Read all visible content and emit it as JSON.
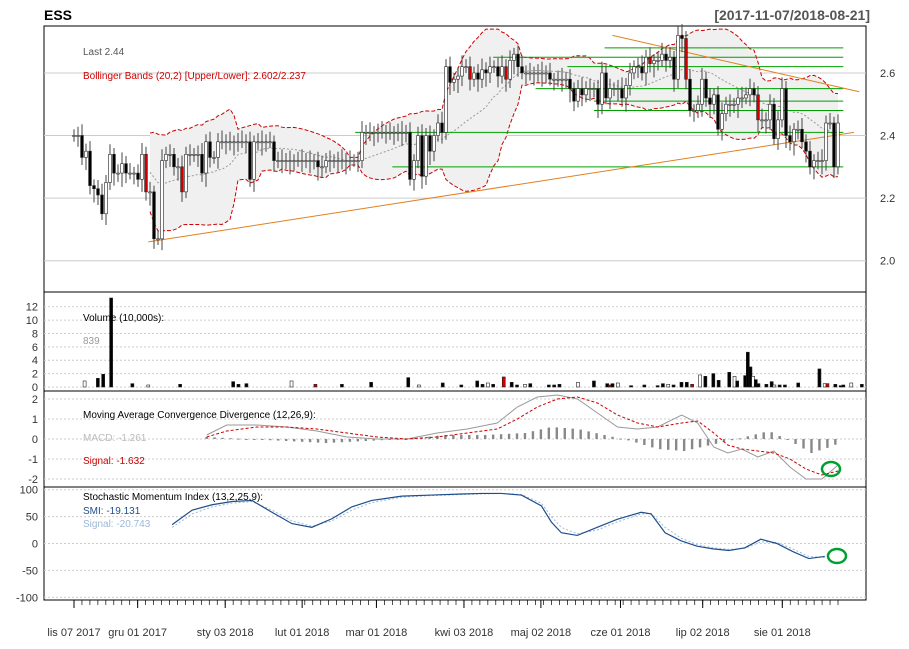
{
  "header": {
    "symbol": "ESS",
    "date_range": "[2017-11-07/2018-08-21]"
  },
  "chart_data": [
    {
      "type": "candlestick",
      "panel": "price",
      "ylim": [
        1.9,
        2.75
      ],
      "yticks": [
        "2.0",
        "2.2",
        "2.4",
        "2.6"
      ],
      "labels": {
        "last": "Last 2.44",
        "bbands": "Bollinger Bands (20,2) [Upper/Lower]: 2.602/2.237"
      },
      "colors": {
        "up": "#ffffff",
        "down": "#000000",
        "down_red": "#cc0000",
        "bb_line": "#cc0000",
        "bb_fill": "#f0f0f0",
        "trend": "#e08020",
        "level": "#00a000",
        "ma": "#999999"
      },
      "close": [
        2.4,
        2.4,
        2.33,
        2.35,
        2.24,
        2.23,
        2.21,
        2.15,
        2.25,
        2.34,
        2.28,
        2.28,
        2.31,
        2.28,
        2.28,
        2.28,
        2.26,
        2.34,
        2.22,
        2.22,
        2.07,
        2.07,
        2.32,
        2.34,
        2.34,
        2.3,
        2.3,
        2.22,
        2.34,
        2.34,
        2.34,
        2.34,
        2.28,
        2.38,
        2.33,
        2.33,
        2.38,
        2.38,
        2.38,
        2.38,
        2.38,
        2.38,
        2.38,
        2.38,
        2.26,
        2.38,
        2.38,
        2.38,
        2.38,
        2.38,
        2.32,
        2.32,
        2.32,
        2.32,
        2.32,
        2.32,
        2.32,
        2.32,
        2.32,
        2.32,
        2.32,
        2.3,
        2.3,
        2.32,
        2.32,
        2.32,
        2.32,
        2.32,
        2.32,
        2.32,
        2.32,
        2.32,
        2.41,
        2.41,
        2.41,
        2.41,
        2.41,
        2.41,
        2.41,
        2.41,
        2.41,
        2.41,
        2.41,
        2.41,
        2.26,
        2.32,
        2.4,
        2.27,
        2.4,
        2.35,
        2.4,
        2.44,
        2.41,
        2.62,
        2.57,
        2.58,
        2.59,
        2.62,
        2.62,
        2.58,
        2.6,
        2.58,
        2.61,
        2.6,
        2.62,
        2.62,
        2.59,
        2.62,
        2.58,
        2.64,
        2.66,
        2.62,
        2.6,
        2.6,
        2.6,
        2.6,
        2.6,
        2.6,
        2.6,
        2.58,
        2.58,
        2.58,
        2.58,
        2.58,
        2.55,
        2.51,
        2.55,
        2.53,
        2.55,
        2.55,
        2.55,
        2.5,
        2.6,
        2.52,
        2.55,
        2.55,
        2.55,
        2.52,
        2.56,
        2.6,
        2.62,
        2.62,
        2.6,
        2.65,
        2.63,
        2.64,
        2.64,
        2.66,
        2.64,
        2.65,
        2.58,
        2.72,
        2.71,
        2.58,
        2.48,
        2.48,
        2.5,
        2.58,
        2.52,
        2.5,
        2.53,
        2.42,
        2.47,
        2.5,
        2.5,
        2.5,
        2.52,
        2.52,
        2.53,
        2.55,
        2.53,
        2.45,
        2.45,
        2.45,
        2.5,
        2.39,
        2.45,
        2.55,
        2.4,
        2.38,
        2.42,
        2.42,
        2.38,
        2.35,
        2.3,
        2.32,
        2.32,
        2.32,
        2.44,
        2.44,
        2.3,
        2.44
      ]
    },
    {
      "type": "bar",
      "panel": "volume",
      "title": "Volume (10,000s):",
      "last_label": "839",
      "ylim": [
        0,
        13
      ],
      "yticks": [
        "0",
        "2",
        "4",
        "6",
        "8",
        "10",
        "12"
      ],
      "spikes": [
        [
          4,
          0.9
        ],
        [
          9,
          1.3
        ],
        [
          11,
          1.9
        ],
        [
          14,
          13.3
        ],
        [
          22,
          0.5
        ],
        [
          28,
          0.3
        ],
        [
          40,
          0.4
        ],
        [
          60,
          0.8
        ],
        [
          62,
          0.4
        ],
        [
          65,
          0.5
        ],
        [
          82,
          0.9
        ],
        [
          91,
          0.4
        ],
        [
          101,
          0.4
        ],
        [
          112,
          0.7
        ],
        [
          126,
          1.4
        ],
        [
          130,
          0.3
        ],
        [
          139,
          0.6
        ],
        [
          146,
          0.3
        ],
        [
          152,
          0.9
        ],
        [
          154,
          0.4
        ],
        [
          156,
          0.6
        ],
        [
          158,
          0.4
        ],
        [
          162,
          1.5
        ],
        [
          165,
          0.7
        ],
        [
          167,
          0.3
        ],
        [
          170,
          0.4
        ],
        [
          172,
          0.5
        ],
        [
          179,
          0.3
        ],
        [
          181,
          0.3
        ],
        [
          183,
          0.4
        ],
        [
          190,
          0.7
        ],
        [
          196,
          0.9
        ],
        [
          201,
          0.5
        ],
        [
          202,
          0.3
        ],
        [
          203,
          0.5
        ],
        [
          205,
          0.6
        ],
        [
          210,
          0.2
        ],
        [
          215,
          0.3
        ],
        [
          220,
          0.2
        ],
        [
          222,
          0.5
        ],
        [
          224,
          0.4
        ],
        [
          226,
          0.3
        ],
        [
          229,
          0.7
        ],
        [
          231,
          0.7
        ],
        [
          233,
          0.4
        ],
        [
          236,
          1.8
        ],
        [
          238,
          1.6
        ],
        [
          241,
          2.0
        ],
        [
          243,
          1.0
        ],
        [
          247,
          2.2
        ],
        [
          249,
          1.6
        ],
        [
          250,
          0.9
        ],
        [
          253,
          1.7
        ],
        [
          254,
          5.2
        ],
        [
          255,
          3.0
        ],
        [
          256,
          1.6
        ],
        [
          257,
          1.1
        ],
        [
          258,
          0.5
        ],
        [
          261,
          0.4
        ],
        [
          263,
          0.8
        ],
        [
          264,
          0.3
        ],
        [
          266,
          0.3
        ],
        [
          268,
          0.3
        ],
        [
          273,
          0.6
        ],
        [
          281,
          2.7
        ],
        [
          283,
          0.5
        ],
        [
          284,
          0.5
        ],
        [
          287,
          0.4
        ],
        [
          289,
          0.2
        ],
        [
          290,
          0.3
        ],
        [
          293,
          0.6
        ],
        [
          297,
          0.4
        ]
      ]
    },
    {
      "type": "line",
      "panel": "macd",
      "title": "Moving Average Convergence Divergence (12,26,9):",
      "macd_label": "MACD: -1.261",
      "signal_label": "Signal: -1.632",
      "ylim": [
        -2.4,
        2.4
      ],
      "yticks": [
        "-2",
        "-1",
        "0",
        "1",
        "2"
      ],
      "macd": [
        [
          25,
          0.2
        ],
        [
          35,
          0.7
        ],
        [
          50,
          0.7
        ],
        [
          65,
          0.6
        ],
        [
          80,
          0.4
        ],
        [
          95,
          0.1
        ],
        [
          110,
          0.0
        ],
        [
          125,
          0.0
        ],
        [
          140,
          0.3
        ],
        [
          155,
          0.5
        ],
        [
          170,
          0.8
        ],
        [
          180,
          1.6
        ],
        [
          190,
          2.1
        ],
        [
          200,
          2.2
        ],
        [
          210,
          2.0
        ],
        [
          220,
          1.3
        ],
        [
          230,
          0.6
        ],
        [
          240,
          0.5
        ],
        [
          250,
          0.6
        ],
        [
          262,
          1.2
        ],
        [
          270,
          0.8
        ],
        [
          278,
          -0.4
        ],
        [
          285,
          -0.7
        ],
        [
          292,
          -0.5
        ],
        [
          300,
          -0.9
        ],
        [
          308,
          -0.6
        ],
        [
          316,
          -1.4
        ],
        [
          324,
          -2.0
        ],
        [
          332,
          -2.0
        ],
        [
          340,
          -1.3
        ]
      ],
      "signal": [
        [
          25,
          0.1
        ],
        [
          35,
          0.4
        ],
        [
          50,
          0.6
        ],
        [
          65,
          0.6
        ],
        [
          80,
          0.5
        ],
        [
          95,
          0.3
        ],
        [
          110,
          0.1
        ],
        [
          125,
          0.0
        ],
        [
          140,
          0.1
        ],
        [
          155,
          0.3
        ],
        [
          170,
          0.5
        ],
        [
          180,
          1.0
        ],
        [
          190,
          1.6
        ],
        [
          200,
          2.0
        ],
        [
          210,
          2.1
        ],
        [
          220,
          1.8
        ],
        [
          230,
          1.2
        ],
        [
          240,
          0.8
        ],
        [
          250,
          0.6
        ],
        [
          262,
          0.8
        ],
        [
          270,
          0.9
        ],
        [
          278,
          0.3
        ],
        [
          285,
          -0.3
        ],
        [
          292,
          -0.5
        ],
        [
          300,
          -0.6
        ],
        [
          308,
          -0.7
        ],
        [
          316,
          -1.0
        ],
        [
          324,
          -1.5
        ],
        [
          332,
          -1.8
        ],
        [
          340,
          -1.6
        ]
      ],
      "histogram": [
        [
          25,
          0.1
        ],
        [
          35,
          0.3
        ],
        [
          50,
          0.1
        ],
        [
          65,
          0.0
        ],
        [
          80,
          -0.1
        ],
        [
          95,
          -0.2
        ],
        [
          110,
          -0.1
        ],
        [
          125,
          0.0
        ],
        [
          140,
          0.2
        ],
        [
          155,
          0.2
        ],
        [
          170,
          0.3
        ],
        [
          180,
          0.6
        ],
        [
          190,
          0.5
        ],
        [
          200,
          0.2
        ],
        [
          210,
          -0.1
        ],
        [
          220,
          -0.5
        ],
        [
          230,
          -0.6
        ],
        [
          240,
          -0.3
        ],
        [
          250,
          0.0
        ],
        [
          262,
          0.4
        ],
        [
          270,
          -0.1
        ],
        [
          278,
          -0.7
        ],
        [
          285,
          -0.4
        ],
        [
          292,
          0.0
        ],
        [
          300,
          -0.3
        ],
        [
          308,
          0.1
        ],
        [
          316,
          -0.4
        ],
        [
          324,
          -0.5
        ],
        [
          332,
          -0.2
        ],
        [
          340,
          0.3
        ]
      ]
    },
    {
      "type": "line",
      "panel": "smi",
      "title": "Stochastic Momentum Index (13,2,25,9):",
      "smi_label": "SMI: -19.131",
      "signal_label": "Signal: -20.743",
      "ylim": [
        -105,
        105
      ],
      "yticks": [
        "-100",
        "-50",
        "0",
        "50",
        "100"
      ],
      "smi": [
        [
          25,
          35
        ],
        [
          35,
          62
        ],
        [
          45,
          72
        ],
        [
          55,
          78
        ],
        [
          65,
          80
        ],
        [
          75,
          58
        ],
        [
          85,
          37
        ],
        [
          95,
          30
        ],
        [
          105,
          46
        ],
        [
          115,
          68
        ],
        [
          125,
          80
        ],
        [
          140,
          88
        ],
        [
          155,
          90
        ],
        [
          170,
          92
        ],
        [
          180,
          93
        ],
        [
          190,
          93
        ],
        [
          200,
          90
        ],
        [
          210,
          70
        ],
        [
          215,
          40
        ],
        [
          220,
          20
        ],
        [
          228,
          15
        ],
        [
          238,
          30
        ],
        [
          248,
          45
        ],
        [
          260,
          58
        ],
        [
          265,
          55
        ],
        [
          272,
          20
        ],
        [
          280,
          5
        ],
        [
          288,
          -5
        ],
        [
          296,
          -10
        ],
        [
          304,
          -13
        ],
        [
          312,
          -8
        ],
        [
          320,
          8
        ],
        [
          328,
          0
        ],
        [
          336,
          -15
        ],
        [
          344,
          -28
        ],
        [
          352,
          -24
        ]
      ],
      "signal": [
        [
          25,
          30
        ],
        [
          35,
          55
        ],
        [
          45,
          68
        ],
        [
          55,
          75
        ],
        [
          65,
          78
        ],
        [
          75,
          62
        ],
        [
          85,
          42
        ],
        [
          95,
          32
        ],
        [
          105,
          42
        ],
        [
          115,
          62
        ],
        [
          125,
          76
        ],
        [
          140,
          86
        ],
        [
          155,
          89
        ],
        [
          170,
          91
        ],
        [
          180,
          92
        ],
        [
          190,
          93
        ],
        [
          200,
          91
        ],
        [
          210,
          75
        ],
        [
          215,
          50
        ],
        [
          220,
          30
        ],
        [
          228,
          18
        ],
        [
          238,
          25
        ],
        [
          248,
          40
        ],
        [
          260,
          55
        ],
        [
          265,
          56
        ],
        [
          272,
          30
        ],
        [
          280,
          10
        ],
        [
          288,
          -2
        ],
        [
          296,
          -8
        ],
        [
          304,
          -11
        ],
        [
          312,
          -9
        ],
        [
          320,
          3
        ],
        [
          328,
          2
        ],
        [
          336,
          -10
        ],
        [
          344,
          -24
        ],
        [
          352,
          -26
        ]
      ]
    }
  ],
  "x_axis": {
    "labels": [
      "lis 07 2017",
      "gru 01 2017",
      "sty 03 2018",
      "lut 01 2018",
      "mar 01 2018",
      "kwi 03 2018",
      "maj 02 2018",
      "cze 01 2018",
      "lip 02 2018",
      "sie 01 2018"
    ],
    "label_days": [
      0,
      24,
      57,
      86,
      114,
      147,
      176,
      206,
      237,
      267
    ]
  }
}
